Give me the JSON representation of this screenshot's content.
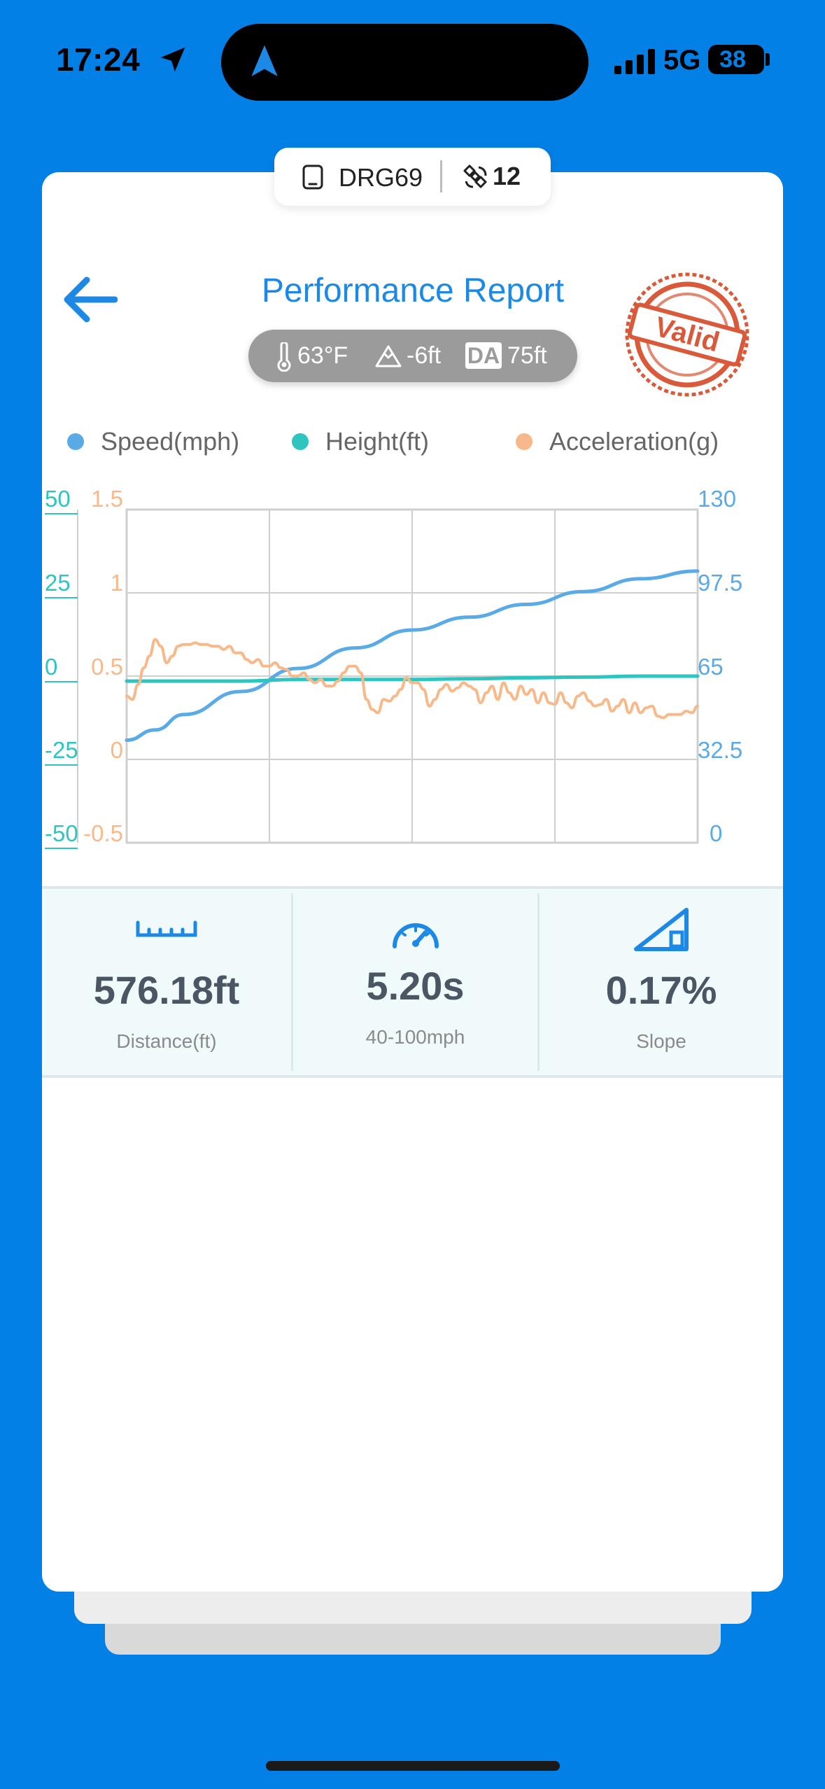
{
  "status_bar": {
    "time": "17:24",
    "network": "5G",
    "battery": "38"
  },
  "device": {
    "name": "DRG69",
    "satellites": "12"
  },
  "header": {
    "title": "Performance Report",
    "stamp_text": "Valid"
  },
  "conditions": {
    "temperature": "63°F",
    "elevation": "-6ft",
    "da_label": "DA",
    "density_altitude": "75ft"
  },
  "legend": [
    {
      "label": "Speed(mph)",
      "color": "#5AAAE6"
    },
    {
      "label": "Height(ft)",
      "color": "#2EC4C0"
    },
    {
      "label": "Acceleration(g)",
      "color": "#F8B98A"
    }
  ],
  "chart_data": {
    "type": "line",
    "x_range": [
      0,
      100
    ],
    "axes": {
      "height_ticks": [
        "50",
        "25",
        "0",
        "-25",
        "-50"
      ],
      "height_range": [
        -50,
        50
      ],
      "acceleration_ticks": [
        "1.5",
        "1",
        "0.5",
        "0",
        "-0.5"
      ],
      "acceleration_range": [
        -0.5,
        1.5
      ],
      "speed_ticks": [
        "130",
        "97.5",
        "65",
        "32.5",
        "0"
      ],
      "speed_range": [
        0,
        130
      ]
    },
    "grid": true,
    "legend_position": "top",
    "series": [
      {
        "name": "Speed(mph)",
        "axis": "speed",
        "color": "#5AAAE6",
        "x": [
          0,
          5,
          10,
          20,
          30,
          40,
          50,
          60,
          70,
          80,
          90,
          100
        ],
        "y": [
          40,
          44,
          50,
          59,
          68,
          76,
          83,
          88,
          93,
          98,
          103,
          106
        ]
      },
      {
        "name": "Height(ft)",
        "axis": "height",
        "color": "#2EC4C0",
        "x": [
          0,
          10,
          20,
          30,
          40,
          50,
          60,
          70,
          80,
          90,
          100
        ],
        "y": [
          -1.5,
          -1.5,
          -1.5,
          -1.0,
          -1.0,
          -1.0,
          -0.8,
          -0.5,
          -0.3,
          0,
          0
        ]
      },
      {
        "name": "Acceleration(g)",
        "axis": "acceleration",
        "color": "#F8B98A",
        "x": [
          0,
          1,
          2,
          3,
          4,
          5,
          6,
          7,
          8,
          9,
          10,
          11,
          12,
          13,
          14,
          15,
          16,
          17,
          18,
          19,
          20,
          21,
          22,
          23,
          24,
          25,
          26,
          27,
          28,
          29,
          30,
          31,
          32,
          33,
          34,
          35,
          36,
          37,
          38,
          39,
          40,
          41,
          42,
          43,
          44,
          45,
          46,
          47,
          48,
          49,
          50,
          51,
          52,
          53,
          54,
          55,
          56,
          57,
          58,
          59,
          60,
          61,
          62,
          63,
          64,
          65,
          66,
          67,
          68,
          69,
          70,
          71,
          72,
          73,
          74,
          75,
          76,
          77,
          78,
          79,
          80,
          81,
          82,
          83,
          84,
          85,
          86,
          87,
          88,
          89,
          90,
          91,
          92,
          93,
          94,
          95,
          96,
          97,
          98,
          99,
          100
        ],
        "y": [
          0.38,
          0.36,
          0.45,
          0.55,
          0.62,
          0.72,
          0.68,
          0.58,
          0.62,
          0.68,
          0.69,
          0.69,
          0.7,
          0.69,
          0.69,
          0.68,
          0.68,
          0.66,
          0.68,
          0.64,
          0.64,
          0.6,
          0.58,
          0.6,
          0.56,
          0.56,
          0.58,
          0.55,
          0.54,
          0.5,
          0.5,
          0.52,
          0.48,
          0.46,
          0.48,
          0.44,
          0.44,
          0.47,
          0.52,
          0.56,
          0.56,
          0.52,
          0.36,
          0.3,
          0.28,
          0.36,
          0.35,
          0.38,
          0.42,
          0.49,
          0.46,
          0.46,
          0.42,
          0.32,
          0.36,
          0.42,
          0.45,
          0.41,
          0.43,
          0.46,
          0.44,
          0.42,
          0.34,
          0.4,
          0.44,
          0.36,
          0.46,
          0.4,
          0.36,
          0.44,
          0.39,
          0.42,
          0.34,
          0.4,
          0.34,
          0.33,
          0.4,
          0.34,
          0.31,
          0.38,
          0.4,
          0.35,
          0.32,
          0.33,
          0.36,
          0.29,
          0.32,
          0.36,
          0.28,
          0.34,
          0.28,
          0.31,
          0.32,
          0.26,
          0.25,
          0.27,
          0.27,
          0.27,
          0.29,
          0.28,
          0.32
        ]
      }
    ]
  },
  "stats": [
    {
      "icon": "ruler-icon",
      "value": "576.18ft",
      "label": "Distance(ft)"
    },
    {
      "icon": "speedometer-icon",
      "value": "5.20s",
      "label": "40-100mph"
    },
    {
      "icon": "slope-icon",
      "value": "0.17%",
      "label": "Slope"
    }
  ]
}
